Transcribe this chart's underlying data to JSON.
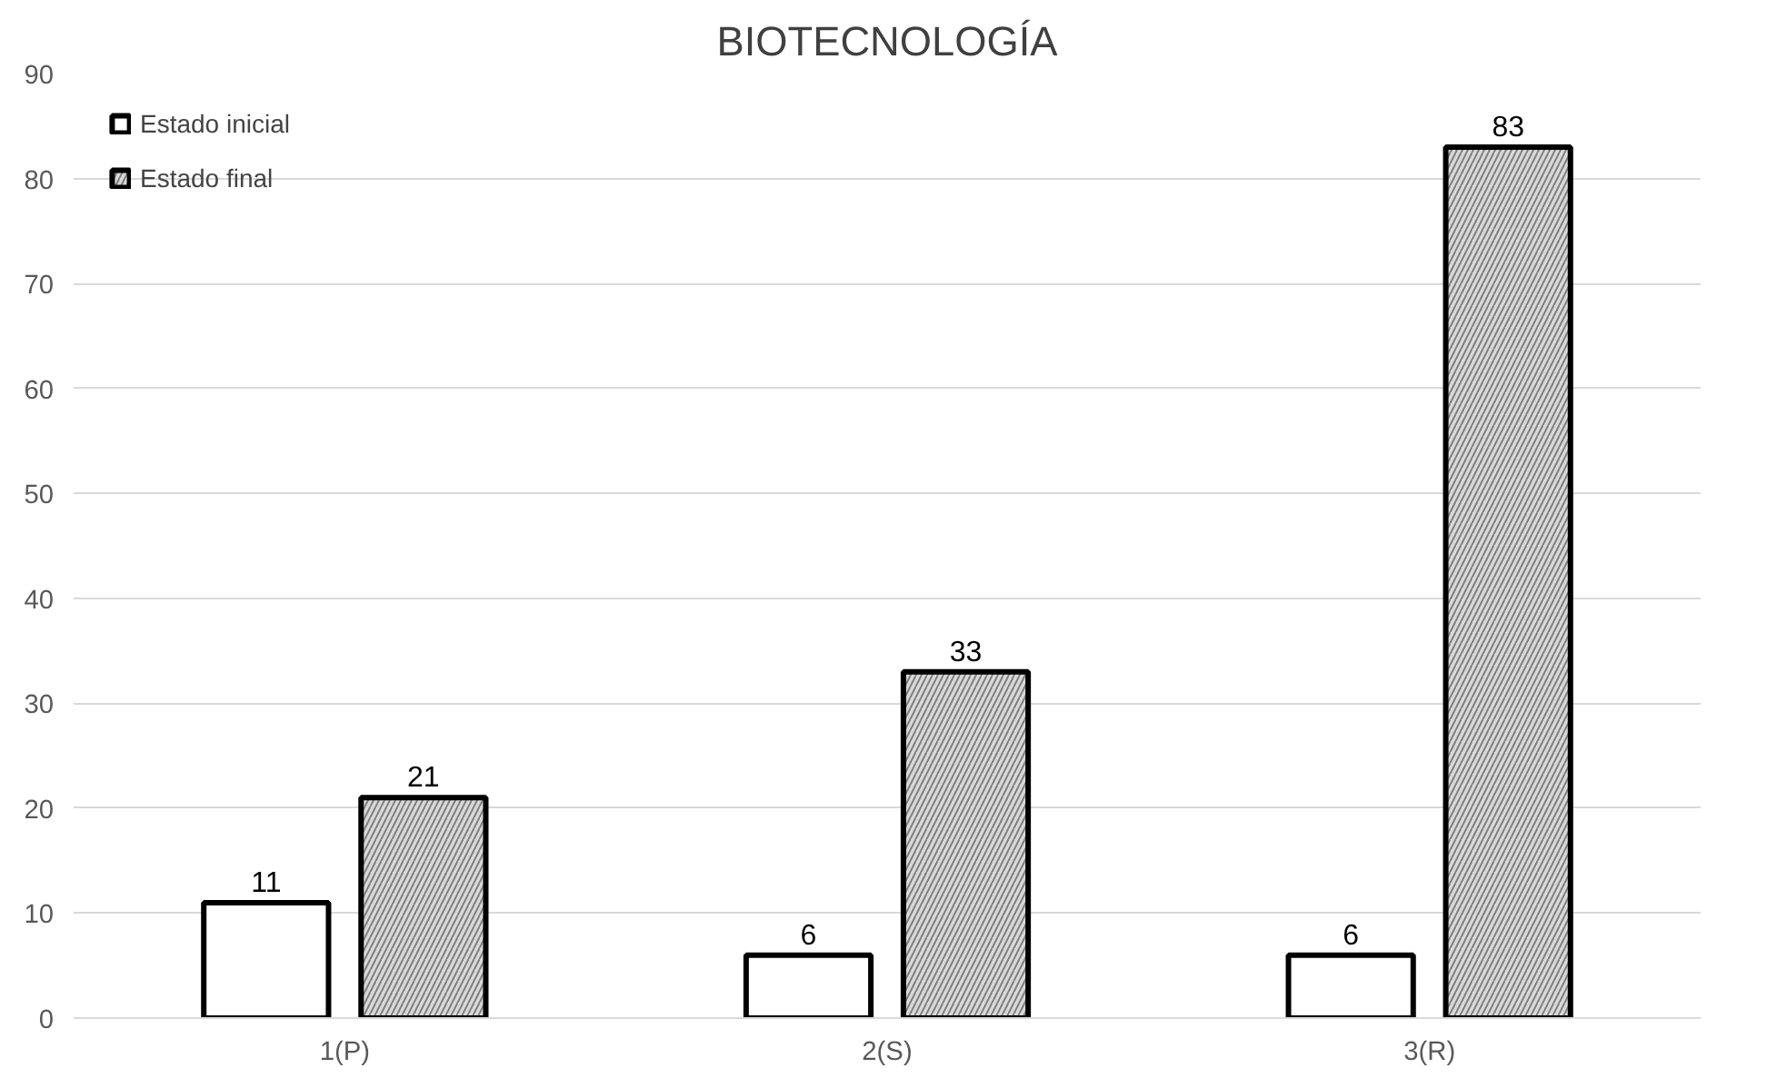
{
  "chart_data": {
    "type": "bar",
    "title": "BIOTECNOLOGÍA",
    "categories": [
      "1(P)",
      "2(S)",
      "3(R)"
    ],
    "series": [
      {
        "name": "Estado inicial",
        "color": "#ffffff",
        "values": [
          11,
          6,
          6
        ]
      },
      {
        "name": "Estado final",
        "color": "#d9d9d9",
        "values": [
          21,
          33,
          83
        ]
      }
    ],
    "ylim": [
      0,
      90
    ],
    "yticks": [
      0,
      10,
      20,
      30,
      40,
      50,
      60,
      70,
      80,
      90
    ],
    "grid": "y",
    "legend": "top left",
    "data_labels": true
  }
}
